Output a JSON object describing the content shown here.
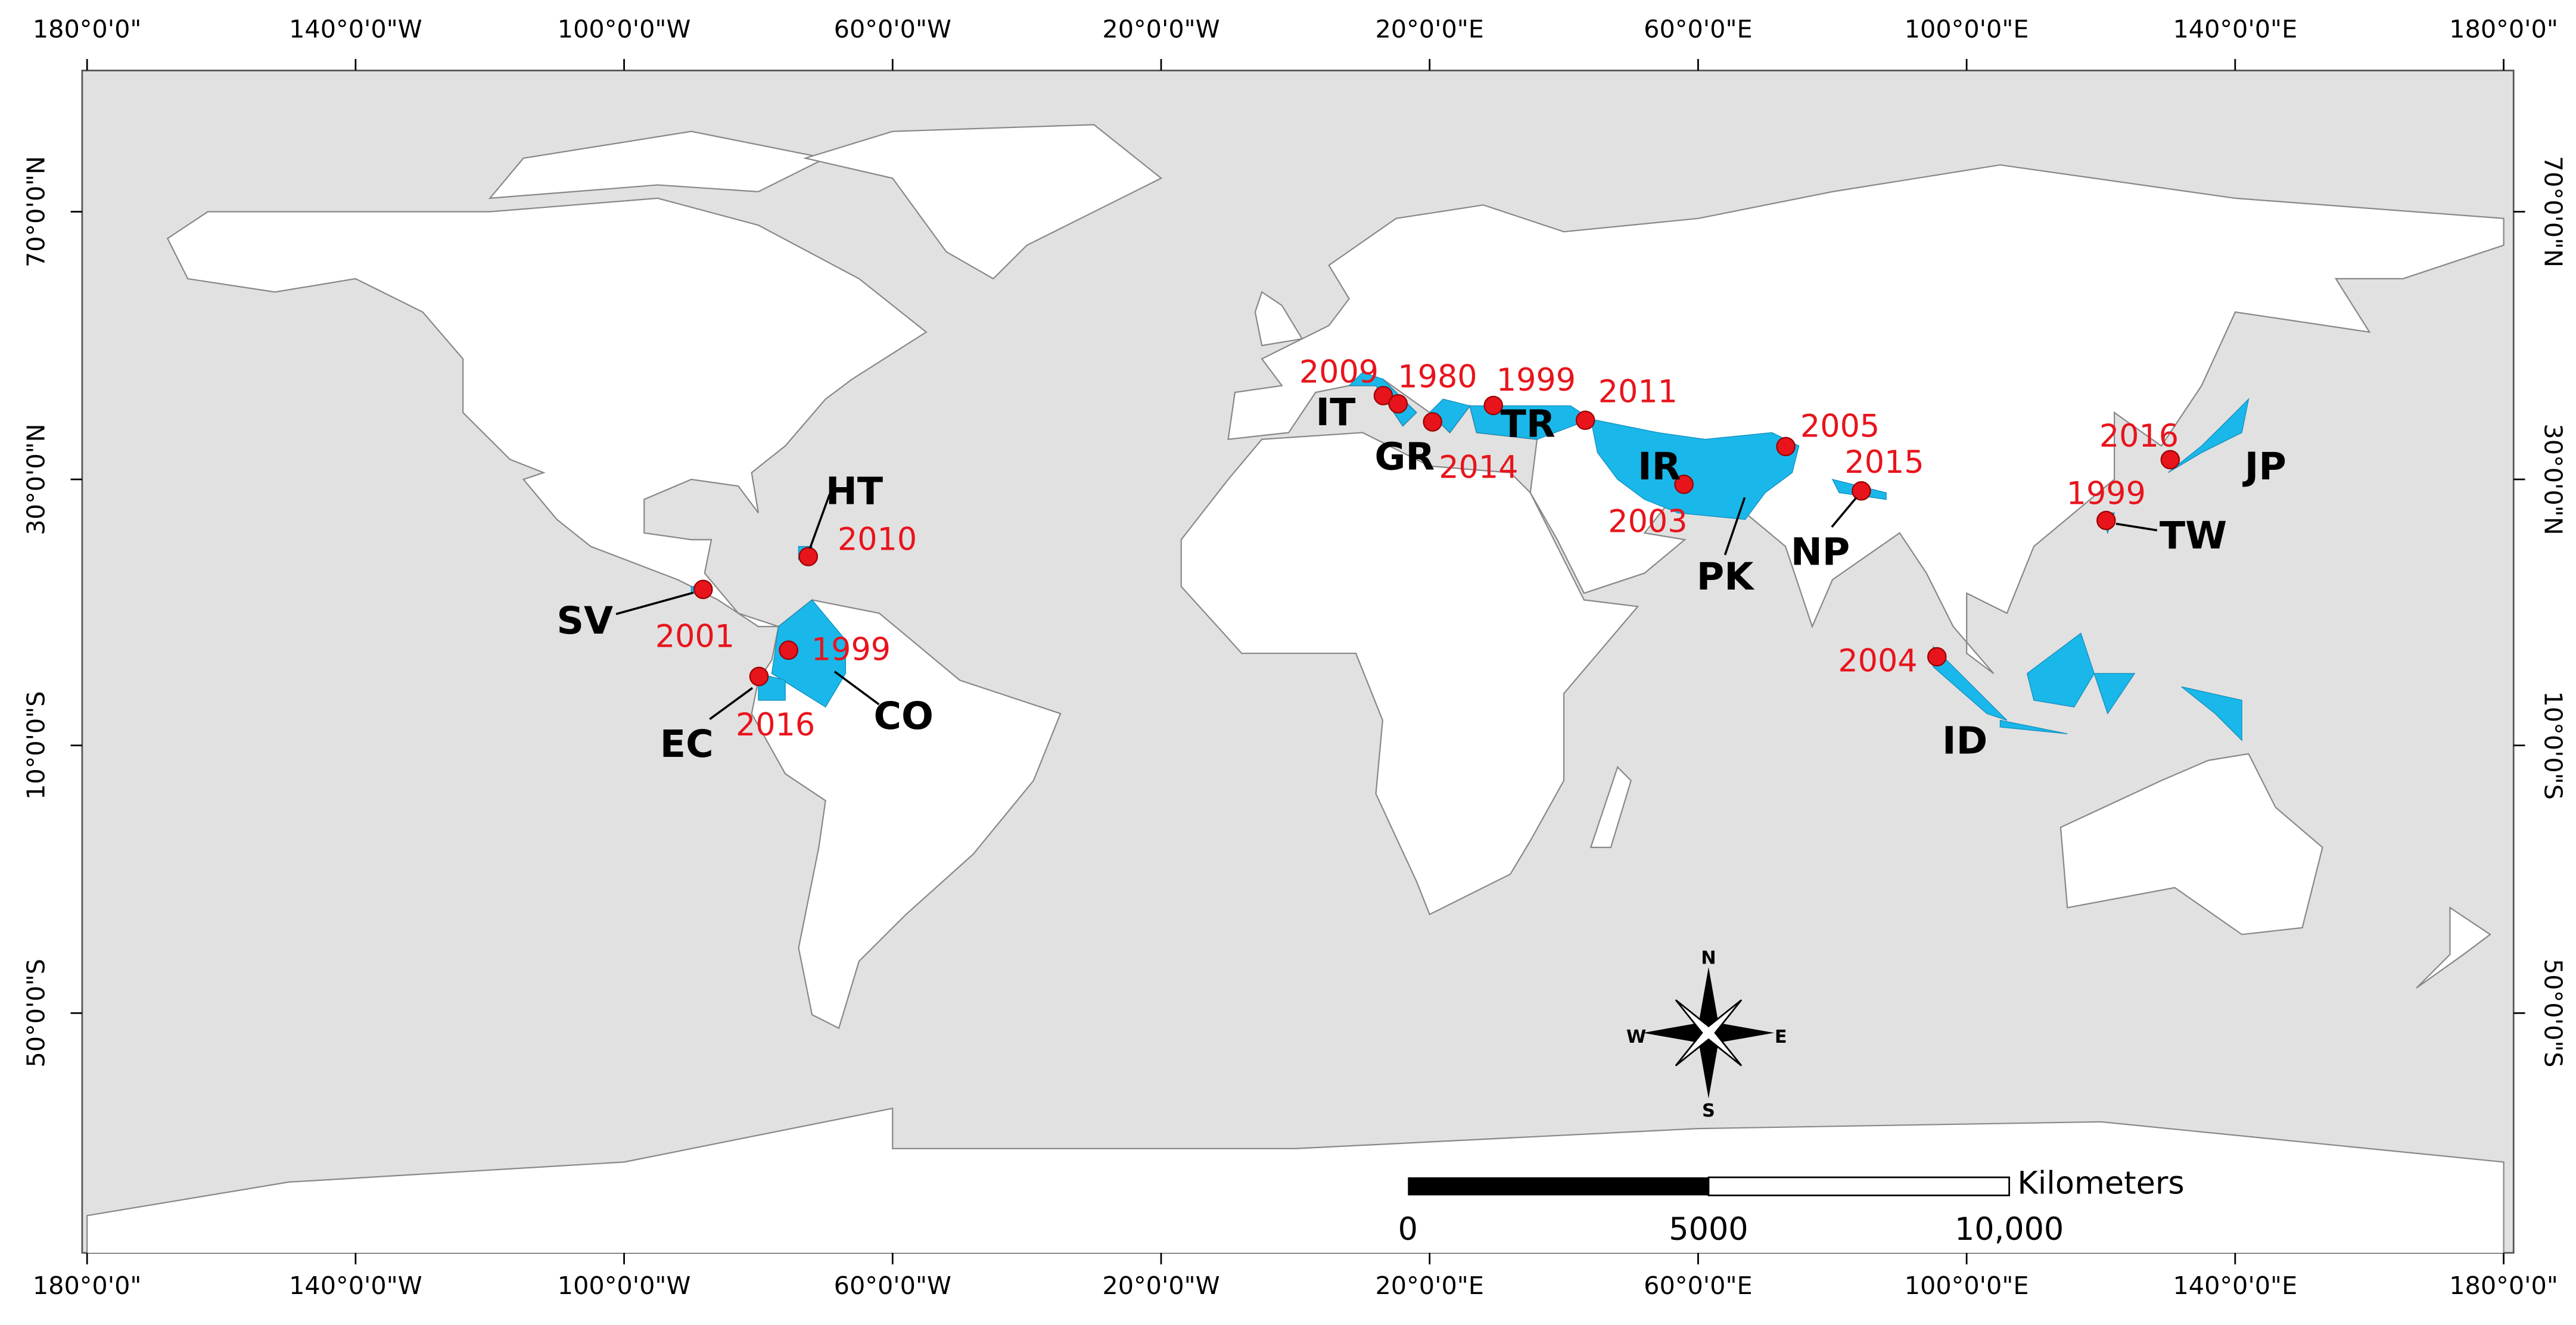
{
  "graticule": {
    "top": [
      "180°0'0\"",
      "140°0'0\"W",
      "100°0'0\"W",
      "60°0'0\"W",
      "20°0'0\"W",
      "20°0'0\"E",
      "60°0'0\"E",
      "100°0'0\"E",
      "140°0'0\"E",
      "180°0'0\""
    ],
    "bottom": [
      "180°0'0\"",
      "140°0'0\"W",
      "100°0'0\"W",
      "60°0'0\"W",
      "20°0'0\"W",
      "20°0'0\"E",
      "60°0'0\"E",
      "100°0'0\"E",
      "140°0'0\"E",
      "180°0'0\""
    ],
    "left": [
      "70°0'0\"N",
      "30°0'0\"N",
      "10°0'0\"S",
      "50°0'0\"S"
    ],
    "right": [
      "70°0'0\"N",
      "30°0'0\"N",
      "10°0'0\"S",
      "50°0'0\"S"
    ]
  },
  "events": [
    "2009",
    "1980",
    "2014",
    "1999",
    "2011",
    "2003",
    "2005",
    "2015",
    "2016",
    "1999",
    "2004",
    "2010",
    "2001",
    "1999",
    "2016"
  ],
  "countries": [
    "IT",
    "GR",
    "TR",
    "IR",
    "PK",
    "NP",
    "JP",
    "TW",
    "ID",
    "HT",
    "SV",
    "EC",
    "CO"
  ],
  "scale_bar": {
    "unit": "Kilometers",
    "labels": [
      "0",
      "5000",
      "10,000"
    ]
  },
  "compass": [
    "N",
    "S",
    "W",
    "E"
  ]
}
